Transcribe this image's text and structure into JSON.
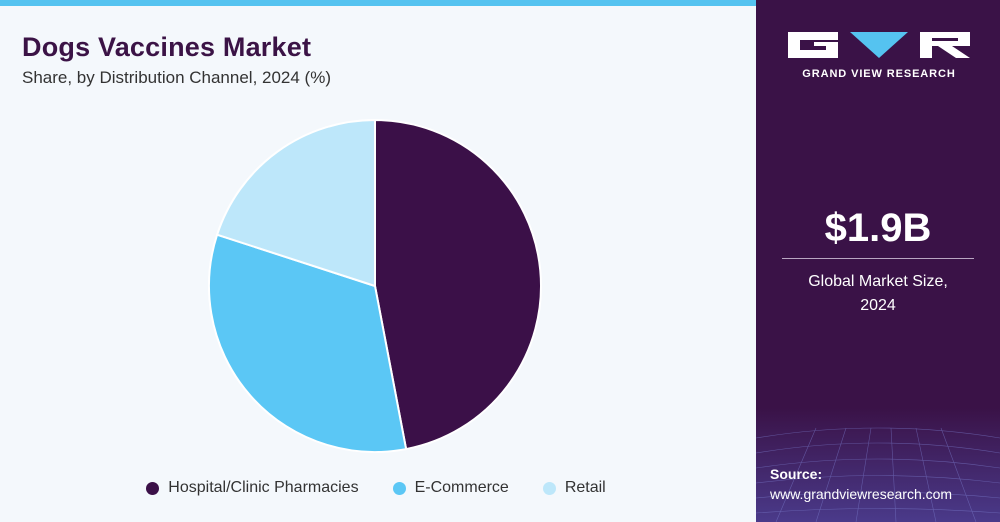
{
  "title": "Dogs Vaccines Market",
  "subtitle": "Share, by Distribution Channel, 2024 (%)",
  "brand": {
    "name": "GRAND VIEW RESEARCH"
  },
  "market": {
    "size": "$1.9B",
    "label_line1": "Global Market Size,",
    "label_line2": "2024"
  },
  "source": {
    "label": "Source:",
    "url": "www.grandviewresearch.com"
  },
  "colors": {
    "accent_bar": "#55c3f0",
    "panel": "#3a1247",
    "series": [
      "#3b1048",
      "#5bc7f5",
      "#bde7fa"
    ]
  },
  "chart_data": {
    "type": "pie",
    "title": "Dogs Vaccines Market",
    "subtitle": "Share, by Distribution Channel, 2024 (%)",
    "categories": [
      "Hospital/Clinic Pharmacies",
      "E-Commerce",
      "Retail"
    ],
    "values": [
      47,
      33,
      20
    ],
    "legend": "bottom",
    "start_angle": "12 o'clock",
    "direction": "clockwise"
  }
}
